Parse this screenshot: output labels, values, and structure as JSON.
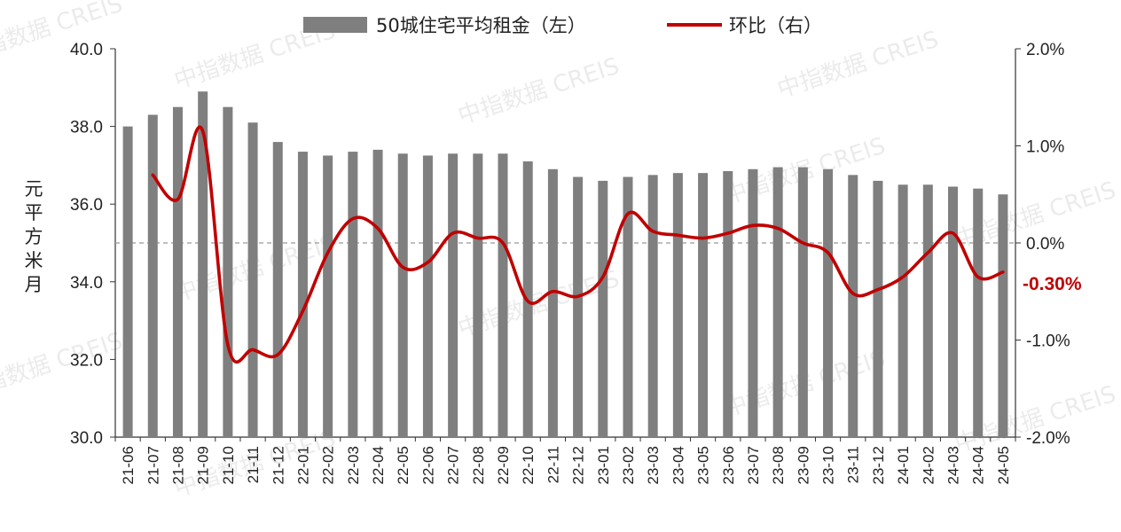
{
  "chart_data": {
    "type": "bar",
    "categories": [
      "21-06",
      "21-07",
      "21-08",
      "21-09",
      "21-10",
      "21-11",
      "21-12",
      "22-01",
      "22-02",
      "22-03",
      "22-04",
      "22-05",
      "22-06",
      "22-07",
      "22-08",
      "22-09",
      "22-10",
      "22-11",
      "22-12",
      "23-01",
      "23-02",
      "23-03",
      "23-04",
      "23-05",
      "23-06",
      "23-07",
      "23-08",
      "23-09",
      "23-10",
      "23-11",
      "23-12",
      "24-01",
      "24-02",
      "24-03",
      "24-04",
      "24-05"
    ],
    "series": [
      {
        "name": "50城住宅平均租金（左）",
        "type": "bar",
        "axis": "left",
        "color": "#7f7f7f",
        "values": [
          38.0,
          38.3,
          38.5,
          38.9,
          38.5,
          38.1,
          37.6,
          37.35,
          37.25,
          37.35,
          37.4,
          37.3,
          37.25,
          37.3,
          37.3,
          37.3,
          37.1,
          36.9,
          36.7,
          36.6,
          36.7,
          36.75,
          36.8,
          36.8,
          36.85,
          36.9,
          36.95,
          36.95,
          36.9,
          36.75,
          36.6,
          36.5,
          36.5,
          36.45,
          36.4,
          36.25
        ]
      },
      {
        "name": "环比（右）",
        "type": "line",
        "axis": "right",
        "color": "#c00000",
        "values": [
          null,
          0.7,
          0.45,
          1.15,
          -1.05,
          -1.1,
          -1.15,
          -0.7,
          -0.1,
          0.25,
          0.15,
          -0.25,
          -0.2,
          0.1,
          0.05,
          0.0,
          -0.6,
          -0.5,
          -0.55,
          -0.35,
          0.3,
          0.12,
          0.08,
          0.05,
          0.1,
          0.18,
          0.15,
          0.0,
          -0.1,
          -0.52,
          -0.48,
          -0.35,
          -0.1,
          0.1,
          -0.35,
          -0.3
        ]
      }
    ],
    "left_axis": {
      "ylim": [
        30.0,
        40.0
      ],
      "ticks": [
        "30.0",
        "32.0",
        "34.0",
        "36.0",
        "38.0",
        "40.0"
      ],
      "label": "元/平方米/月"
    },
    "right_axis": {
      "ylim": [
        -2.0,
        2.0
      ],
      "ticks": [
        "-2.0%",
        "-1.0%",
        "0.0%",
        "1.0%",
        "2.0%"
      ]
    },
    "end_label": "-0.30%",
    "legend_position": "top-center",
    "reference_line": "right axis 0.0%, dashed",
    "watermark": [
      "中指数据 CREIS"
    ]
  },
  "colors": {
    "bar": "#7f7f7f",
    "line": "#c00000",
    "axis": "#333333",
    "dashed": "#999999"
  }
}
